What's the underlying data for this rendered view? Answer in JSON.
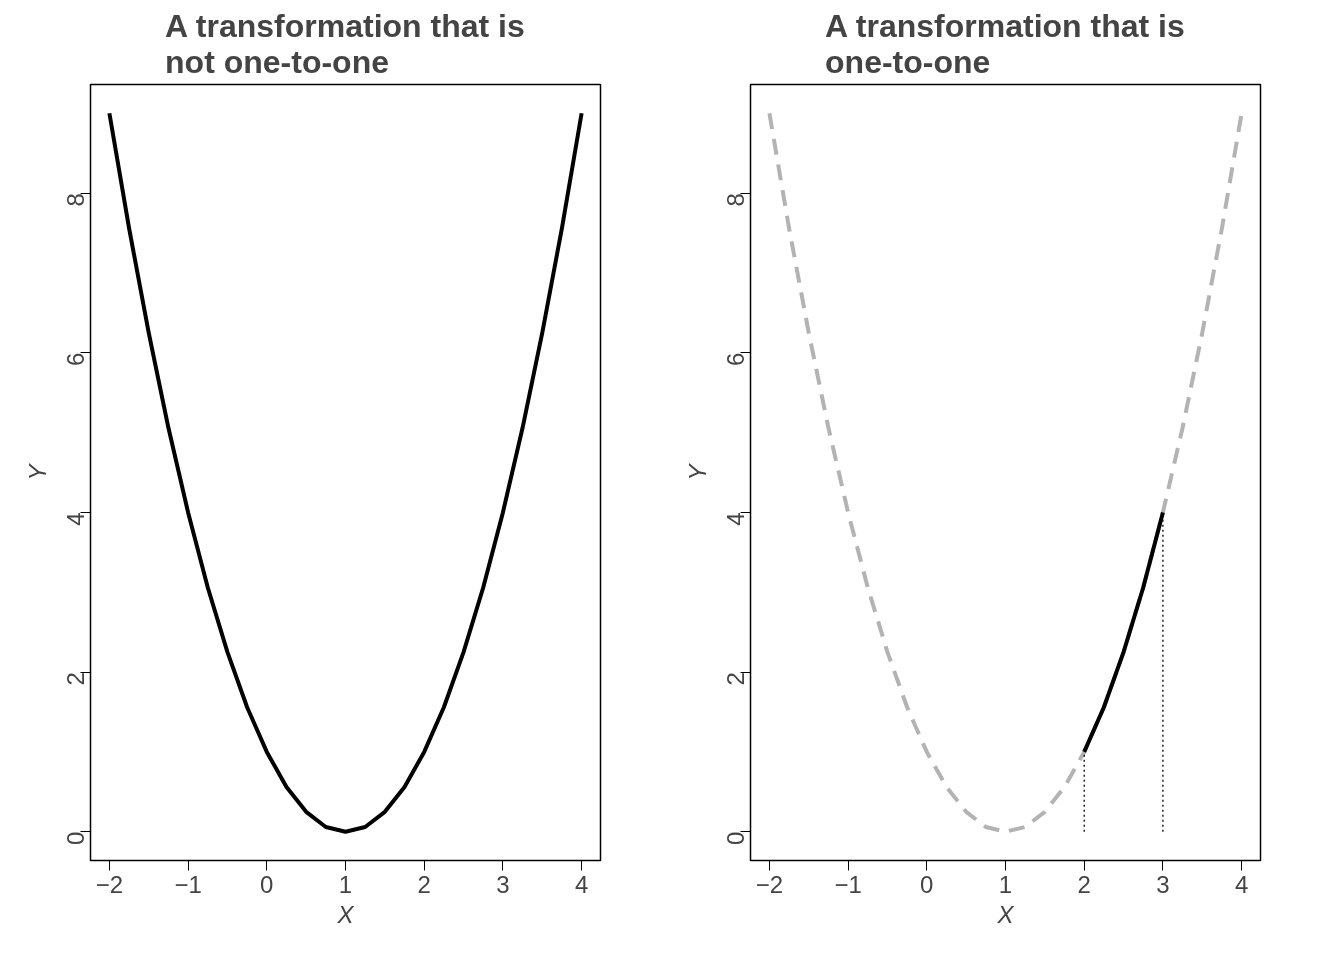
{
  "chart_data": [
    {
      "type": "line",
      "title": "A transformation that is\nnot one-to-one",
      "xlabel": "X",
      "ylabel": "Y",
      "xlim": [
        -2.24,
        4.24
      ],
      "ylim": [
        -0.36,
        9.36
      ],
      "xticks": [
        -2,
        -1,
        0,
        1,
        2,
        3,
        4
      ],
      "yticks": [
        0,
        2,
        4,
        6,
        8
      ],
      "series": [
        {
          "color": "#000000",
          "line_style": "solid",
          "x": [
            -2,
            -1.75,
            -1.5,
            -1.25,
            -1,
            -0.75,
            -0.5,
            -0.25,
            0,
            0.25,
            0.5,
            0.75,
            1,
            1.25,
            1.5,
            1.75,
            2,
            2.25,
            2.5,
            2.75,
            3,
            3.25,
            3.5,
            3.75,
            4
          ],
          "values": [
            9,
            7.56,
            6.25,
            5.06,
            4,
            3.06,
            2.25,
            1.56,
            1,
            0.56,
            0.25,
            0.06,
            0,
            0.06,
            0.25,
            0.56,
            1,
            1.56,
            2.25,
            3.06,
            4,
            5.06,
            6.25,
            7.56,
            9
          ]
        }
      ]
    },
    {
      "type": "line",
      "title": "A transformation that is\none-to-one",
      "xlabel": "X",
      "ylabel": "Y",
      "xlim": [
        -2.24,
        4.24
      ],
      "ylim": [
        -0.36,
        9.36
      ],
      "xticks": [
        -2,
        -1,
        0,
        1,
        2,
        3,
        4
      ],
      "yticks": [
        0,
        2,
        4,
        6,
        8
      ],
      "series": [
        {
          "color": "#b3b3b3",
          "line_style": "dashed",
          "x": [
            -2,
            -1.75,
            -1.5,
            -1.25,
            -1,
            -0.75,
            -0.5,
            -0.25,
            0,
            0.25,
            0.5,
            0.75,
            1,
            1.25,
            1.5,
            1.75,
            2,
            2.25,
            2.5,
            2.75,
            3,
            3.25,
            3.5,
            3.75,
            4
          ],
          "values": [
            9,
            7.56,
            6.25,
            5.06,
            4,
            3.06,
            2.25,
            1.56,
            1,
            0.56,
            0.25,
            0.06,
            0,
            0.06,
            0.25,
            0.56,
            1,
            1.56,
            2.25,
            3.06,
            4,
            5.06,
            6.25,
            7.56,
            9
          ]
        },
        {
          "color": "#000000",
          "line_style": "solid",
          "x": [
            2,
            2.25,
            2.5,
            2.75,
            3
          ],
          "values": [
            1,
            1.56,
            2.25,
            3.06,
            4
          ]
        },
        {
          "color": "#000000",
          "line_style": "dotted",
          "x": [
            2,
            2
          ],
          "values": [
            0,
            1
          ]
        },
        {
          "color": "#000000",
          "line_style": "dotted",
          "x": [
            3,
            3
          ],
          "values": [
            0,
            4
          ]
        }
      ]
    }
  ]
}
